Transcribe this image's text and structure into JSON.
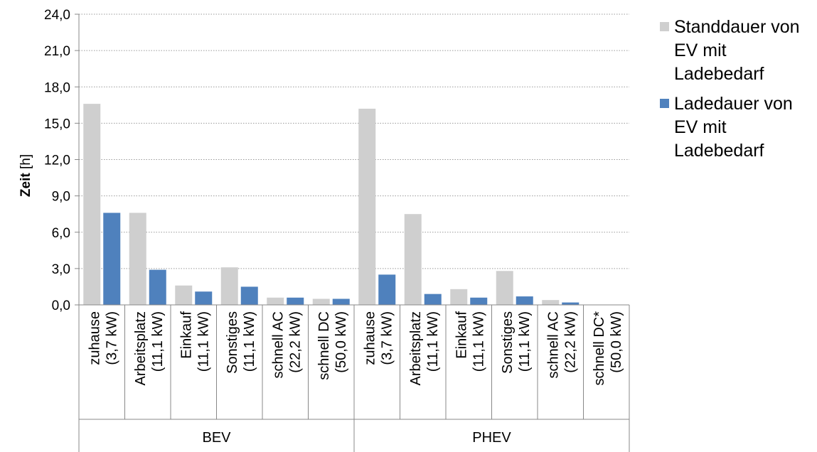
{
  "chart_data": {
    "type": "bar",
    "ylabel_bold": "Zeit",
    "ylabel_unit": "[h]",
    "ylim": [
      0,
      24
    ],
    "yticks": [
      "0,0",
      "3,0",
      "6,0",
      "9,0",
      "12,0",
      "15,0",
      "18,0",
      "21,0",
      "24,0"
    ],
    "grid": true,
    "legend_position": "right",
    "groups": [
      {
        "label": "BEV",
        "categories": [
          [
            "zuhause",
            "(3,7 kW)"
          ],
          [
            "Arbeitsplatz",
            "(11,1 kW)"
          ],
          [
            "Einkauf",
            "(11,1 kW)"
          ],
          [
            "Sonstiges",
            "(11,1 kW)"
          ],
          [
            "schnell AC",
            "(22,2 kW)"
          ],
          [
            "schnell DC",
            "(50,0 kW)"
          ]
        ]
      },
      {
        "label": "PHEV",
        "categories": [
          [
            "zuhause",
            "(3,7 kW)"
          ],
          [
            "Arbeitsplatz",
            "(11,1 kW)"
          ],
          [
            "Einkauf",
            "(11,1 kW)"
          ],
          [
            "Sonstiges",
            "(11,1 kW)"
          ],
          [
            "schnell AC",
            "(22,2 kW)"
          ],
          [
            "schnell DC*",
            "(50,0 kW)"
          ]
        ]
      }
    ],
    "series": [
      {
        "name": "Standdauer von EV mit Ladebedarf",
        "color": "#cfcfcf",
        "values": [
          16.6,
          7.6,
          1.6,
          3.1,
          0.6,
          0.5,
          16.2,
          7.5,
          1.3,
          2.8,
          0.4,
          0.0
        ]
      },
      {
        "name": "Ladedauer von EV mit Ladebedarf",
        "color": "#4f81bd",
        "values": [
          7.6,
          2.9,
          1.1,
          1.5,
          0.6,
          0.5,
          2.5,
          0.9,
          0.6,
          0.7,
          0.2,
          0.0
        ]
      }
    ]
  },
  "legend": {
    "items": [
      {
        "lines": [
          "Standdauer von",
          "EV mit",
          "Ladebedarf"
        ],
        "color": "#cfcfcf"
      },
      {
        "lines": [
          "Ladedauer von",
          "EV mit",
          "Ladebedarf"
        ],
        "color": "#4f81bd"
      }
    ]
  }
}
